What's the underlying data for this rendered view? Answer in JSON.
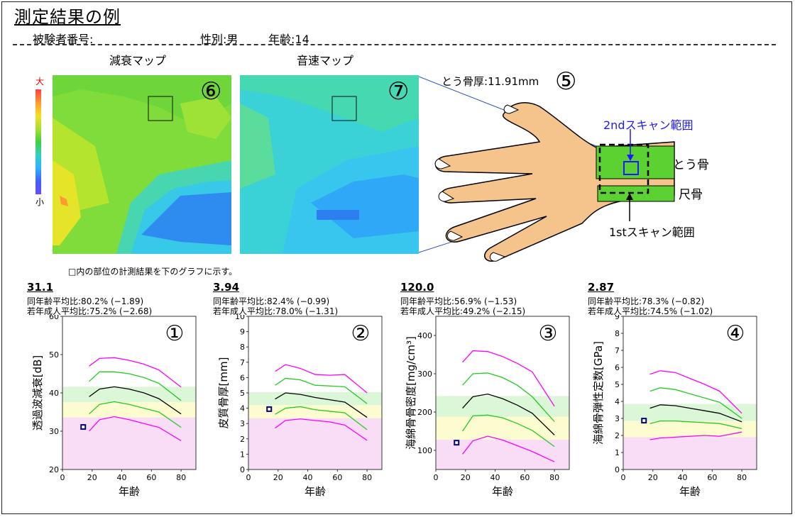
{
  "title": "測定結果の例",
  "header": {
    "subject_label": "被験者番号:",
    "sex_label": "性別:",
    "sex_value": "男",
    "age_label": "年齢:",
    "age_value": "14"
  },
  "maps": {
    "attenuation_label": "減衰マップ",
    "sound_speed_label": "音速マップ",
    "attenuation_number": "⑥",
    "sound_speed_number": "⑦",
    "scale_high": "大",
    "scale_low": "小"
  },
  "hand": {
    "radius_thickness_label": "とう骨厚:",
    "radius_thickness_value": "11.91mm",
    "number": "⑤",
    "scan2_label": "2ndスキャン範囲",
    "scan1_label": "1stスキャン範囲",
    "radius_label": "とう骨",
    "ulna_label": "尺骨"
  },
  "note": "□内の部位の計測結果を下のグラフに示す。",
  "colors": {
    "pink_band": "#f9dcf6",
    "yellow_band": "#fdfbd0",
    "green_band": "#dcf7d8",
    "magenta_line": "#ff00ff",
    "green_line": "#22cc22",
    "mean_line": "#000000",
    "marker": "#000080"
  },
  "chart_data": [
    {
      "type": "line",
      "number": "①",
      "value": "31.1",
      "same_age_label": "同年齢平均比",
      "same_age_value": ":80.2% (−1.89)",
      "young_adult_label": "若年成人平均比",
      "young_adult_value": ":75.2% (−2.68)",
      "ylabel": "透過波減衰[dB]",
      "xlabel": "年齢",
      "xlim": [
        0,
        90
      ],
      "ylim": [
        20,
        60
      ],
      "xticks": [
        "0",
        "20",
        "40",
        "60",
        "80"
      ],
      "yticks": [
        "20",
        "30",
        "40",
        "50",
        "60"
      ],
      "bands": [
        {
          "color": "pink",
          "from": 20,
          "to": 33.6
        },
        {
          "color": "yellow",
          "from": 33.6,
          "to": 37.6
        },
        {
          "color": "green",
          "from": 37.6,
          "to": 41.6
        }
      ],
      "x": [
        18,
        25,
        35,
        45,
        55,
        65,
        80
      ],
      "series": [
        {
          "color": "magenta",
          "values": [
            30,
            33,
            33.8,
            33,
            32,
            31,
            27.5
          ]
        },
        {
          "color": "green",
          "values": [
            34.5,
            37,
            37.7,
            37,
            36,
            35,
            31
          ]
        },
        {
          "color": "black",
          "values": [
            39,
            41,
            41.6,
            41,
            40,
            38.5,
            34.5
          ]
        },
        {
          "color": "green",
          "values": [
            43,
            45.5,
            45.5,
            45,
            44,
            42.5,
            38
          ]
        },
        {
          "color": "magenta",
          "values": [
            47,
            49,
            49.2,
            48.5,
            47.5,
            46,
            41.5
          ]
        }
      ],
      "point": {
        "x": 14,
        "y": 31.1
      }
    },
    {
      "type": "line",
      "number": "②",
      "value": "3.94",
      "same_age_label": "同年齢平均比",
      "same_age_value": ":82.4% (−0.99)",
      "young_adult_label": "若年成人平均比",
      "young_adult_value": ":78.0% (−1.31)",
      "ylabel": "皮質骨厚[mm]",
      "xlabel": "年齢",
      "xlim": [
        0,
        90
      ],
      "ylim": [
        0,
        10
      ],
      "xticks": [
        "0",
        "20",
        "40",
        "60",
        "80"
      ],
      "yticks": [
        "0",
        "1",
        "2",
        "3",
        "4",
        "5",
        "6",
        "7",
        "8",
        "9",
        "10"
      ],
      "bands": [
        {
          "color": "pink",
          "from": 0,
          "to": 3.35
        },
        {
          "color": "yellow",
          "from": 3.35,
          "to": 4.2
        },
        {
          "color": "green",
          "from": 4.2,
          "to": 5.05
        }
      ],
      "x": [
        18,
        25,
        35,
        45,
        55,
        65,
        80
      ],
      "series": [
        {
          "color": "magenta",
          "values": [
            2.7,
            3.2,
            3.3,
            3.2,
            3.1,
            2.9,
            1.9
          ]
        },
        {
          "color": "green",
          "values": [
            3.6,
            4.0,
            4.1,
            3.9,
            3.8,
            3.7,
            2.6
          ]
        },
        {
          "color": "black",
          "values": [
            4.6,
            5.0,
            4.9,
            4.7,
            4.55,
            4.4,
            3.4
          ]
        },
        {
          "color": "green",
          "values": [
            5.5,
            5.95,
            5.85,
            5.5,
            5.45,
            5.4,
            4.3
          ]
        },
        {
          "color": "magenta",
          "values": [
            6.4,
            6.85,
            6.6,
            6.2,
            6.15,
            6.2,
            5.0
          ]
        }
      ],
      "point": {
        "x": 14,
        "y": 3.94
      }
    },
    {
      "type": "line",
      "number": "③",
      "value": "120.0",
      "same_age_label": "同年齢平均比",
      "same_age_value": ":56.9% (−1.53)",
      "young_adult_label": "若年成人平均比",
      "young_adult_value": ":49.2% (−2.15)",
      "ylabel": "海綿骨骨密度[mg/cm³]",
      "xlabel": "年齢",
      "xlim": [
        0,
        90
      ],
      "ylim": [
        50,
        450
      ],
      "xticks": [
        "0",
        "20",
        "40",
        "60",
        "80"
      ],
      "yticks": [
        "100",
        "200",
        "300",
        "400"
      ],
      "bands": [
        {
          "color": "pink",
          "from": 50,
          "to": 128
        },
        {
          "color": "yellow",
          "from": 128,
          "to": 188
        },
        {
          "color": "green",
          "from": 188,
          "to": 242
        }
      ],
      "x": [
        18,
        25,
        35,
        45,
        55,
        65,
        80
      ],
      "series": [
        {
          "color": "magenta",
          "values": [
            90,
            125,
            137,
            127,
            112,
            97,
            70
          ]
        },
        {
          "color": "green",
          "values": [
            150,
            190,
            192,
            185,
            170,
            152,
            110
          ]
        },
        {
          "color": "black",
          "values": [
            210,
            240,
            247,
            235,
            218,
            197,
            140
          ]
        },
        {
          "color": "green",
          "values": [
            270,
            300,
            302,
            290,
            270,
            240,
            175
          ]
        },
        {
          "color": "magenta",
          "values": [
            330,
            360,
            358,
            345,
            327,
            305,
            215
          ]
        }
      ],
      "point": {
        "x": 14,
        "y": 120.0
      }
    },
    {
      "type": "line",
      "number": "④",
      "value": "2.87",
      "same_age_label": "同年齢平均比",
      "same_age_value": ":78.3% (−0.82)",
      "young_adult_label": "若年成人平均比",
      "young_adult_value": ":74.5% (−1.02)",
      "ylabel": "海綿骨弾性定数[GPa]",
      "xlabel": "年齢",
      "xlim": [
        0,
        90
      ],
      "ylim": [
        0,
        9
      ],
      "xticks": [
        "0",
        "20",
        "40",
        "60",
        "80"
      ],
      "yticks": [
        "0",
        "1",
        "2",
        "3",
        "4",
        "5",
        "6",
        "7",
        "8",
        "9"
      ],
      "bands": [
        {
          "color": "pink",
          "from": 0,
          "to": 1.9
        },
        {
          "color": "yellow",
          "from": 1.9,
          "to": 2.85
        },
        {
          "color": "green",
          "from": 2.85,
          "to": 3.85
        }
      ],
      "x": [
        18,
        25,
        35,
        45,
        55,
        65,
        80
      ],
      "series": [
        {
          "color": "magenta",
          "values": [
            1.75,
            1.85,
            1.9,
            1.95,
            2.0,
            1.95,
            2.2
          ]
        },
        {
          "color": "green",
          "values": [
            2.7,
            2.85,
            2.85,
            2.8,
            2.75,
            2.7,
            2.4
          ]
        },
        {
          "color": "black",
          "values": [
            3.6,
            3.8,
            3.75,
            3.6,
            3.45,
            3.3,
            2.8
          ]
        },
        {
          "color": "green",
          "values": [
            4.6,
            4.8,
            4.7,
            4.45,
            4.2,
            3.95,
            3.0
          ]
        },
        {
          "color": "magenta",
          "values": [
            5.6,
            5.8,
            5.7,
            5.35,
            5.0,
            4.6,
            3.3
          ]
        }
      ],
      "point": {
        "x": 14,
        "y": 2.87
      }
    }
  ]
}
